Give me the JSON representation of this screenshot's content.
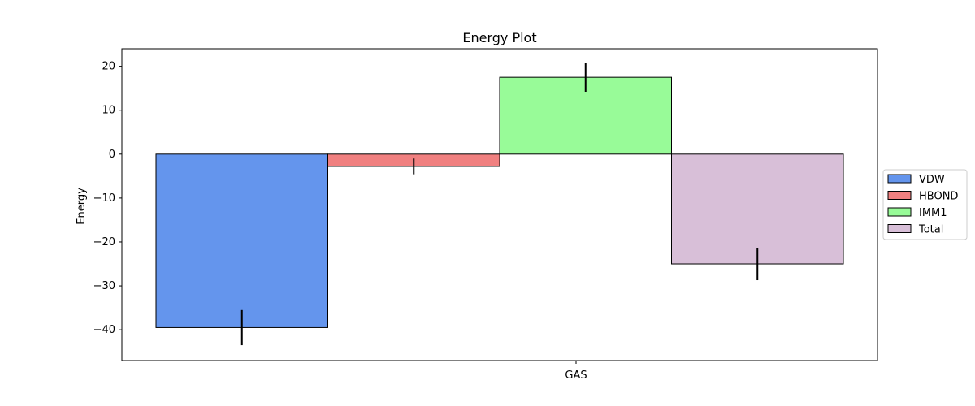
{
  "chart_data": {
    "type": "bar",
    "title": "Energy Plot",
    "xlabel": "",
    "ylabel": "Energy",
    "categories": [
      "GAS"
    ],
    "series": [
      {
        "name": "VDW",
        "values": [
          -39.5
        ],
        "error": [
          4.0
        ],
        "color": "#6495ED"
      },
      {
        "name": "HBOND",
        "values": [
          -2.8
        ],
        "error": [
          1.8
        ],
        "color": "#F08080"
      },
      {
        "name": "IMM1",
        "values": [
          17.5
        ],
        "error": [
          3.3
        ],
        "color": "#98FB98"
      },
      {
        "name": "Total",
        "values": [
          -25.0
        ],
        "error": [
          3.7
        ],
        "color": "#D8BFD8"
      }
    ],
    "ylim": [
      -47,
      24
    ],
    "yticks": [
      -40,
      -30,
      -20,
      -10,
      0,
      10,
      20
    ],
    "grid": false,
    "legend_position": "right"
  }
}
